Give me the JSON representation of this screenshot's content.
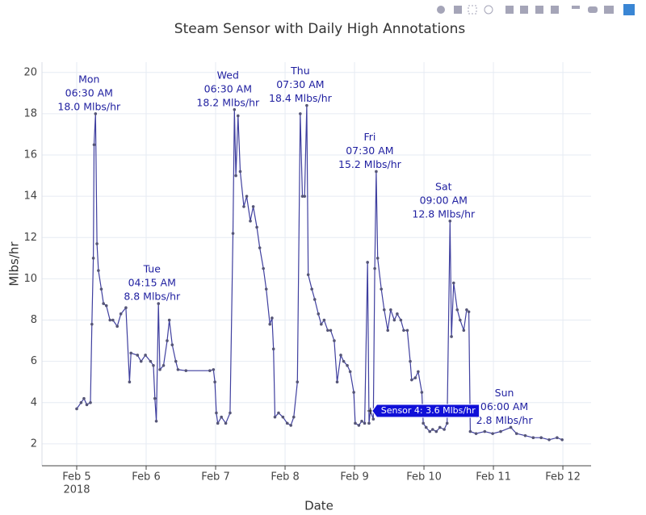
{
  "chart_data": {
    "type": "line",
    "title": "Steam Sensor with Daily High Annotations",
    "x_label": "Date",
    "y_label": "Mlbs/hr",
    "color": "#3f3f9f",
    "marker_color": "#555577",
    "grid": true,
    "xlim": [
      "2018-02-04 12:00",
      "2018-02-12 09:45"
    ],
    "ylim": [
      0.94,
      20.5
    ],
    "yticks": [
      2,
      4,
      6,
      8,
      10,
      12,
      14,
      16,
      18,
      20
    ],
    "xticks": [
      {
        "value": "2018-02-05 00:00",
        "label": [
          "Feb 5",
          "2018"
        ]
      },
      {
        "value": "2018-02-06 00:00",
        "label": [
          "Feb 6"
        ]
      },
      {
        "value": "2018-02-07 00:00",
        "label": [
          "Feb 7"
        ]
      },
      {
        "value": "2018-02-08 00:00",
        "label": [
          "Feb 8"
        ]
      },
      {
        "value": "2018-02-09 00:00",
        "label": [
          "Feb 9"
        ]
      },
      {
        "value": "2018-02-10 00:00",
        "label": [
          "Feb 10"
        ]
      },
      {
        "value": "2018-02-11 00:00",
        "label": [
          "Feb 11"
        ]
      },
      {
        "value": "2018-02-12 00:00",
        "label": [
          "Feb 12"
        ]
      }
    ],
    "x": [
      "2018-02-05 00:00",
      "2018-02-05 01:30",
      "2018-02-05 02:30",
      "2018-02-05 03:30",
      "2018-02-05 04:45",
      "2018-02-05 05:15",
      "2018-02-05 05:45",
      "2018-02-05 06:00",
      "2018-02-05 06:30",
      "2018-02-05 07:00",
      "2018-02-05 07:30",
      "2018-02-05 08:30",
      "2018-02-05 09:15",
      "2018-02-05 10:15",
      "2018-02-05 11:30",
      "2018-02-05 12:30",
      "2018-02-05 14:00",
      "2018-02-05 15:15",
      "2018-02-05 17:00",
      "2018-02-05 18:15",
      "2018-02-05 18:45",
      "2018-02-05 21:00",
      "2018-02-05 22:15",
      "2018-02-05 23:45",
      "2018-02-06 01:30",
      "2018-02-06 02:30",
      "2018-02-06 03:00",
      "2018-02-06 03:30",
      "2018-02-06 04:15",
      "2018-02-06 04:45",
      "2018-02-06 06:00",
      "2018-02-06 07:15",
      "2018-02-06 08:00",
      "2018-02-06 09:00",
      "2018-02-06 10:15",
      "2018-02-06 11:00",
      "2018-02-06 13:45",
      "2018-02-06 22:00",
      "2018-02-06 23:15",
      "2018-02-06 23:45",
      "2018-02-07 00:15",
      "2018-02-07 00:45",
      "2018-02-07 02:00",
      "2018-02-07 03:30",
      "2018-02-07 05:00",
      "2018-02-07 06:00",
      "2018-02-07 06:30",
      "2018-02-07 07:00",
      "2018-02-07 07:45",
      "2018-02-07 08:30",
      "2018-02-07 09:45",
      "2018-02-07 10:45",
      "2018-02-07 12:00",
      "2018-02-07 13:00",
      "2018-02-07 14:15",
      "2018-02-07 15:15",
      "2018-02-07 16:30",
      "2018-02-07 17:30",
      "2018-02-07 18:45",
      "2018-02-07 19:30",
      "2018-02-07 20:00",
      "2018-02-07 20:30",
      "2018-02-07 21:45",
      "2018-02-07 23:15",
      "2018-02-08 00:45",
      "2018-02-08 02:00",
      "2018-02-08 03:00",
      "2018-02-08 04:15",
      "2018-02-08 05:15",
      "2018-02-08 06:00",
      "2018-02-08 06:45",
      "2018-02-08 07:30",
      "2018-02-08 08:00",
      "2018-02-08 09:15",
      "2018-02-08 10:15",
      "2018-02-08 11:30",
      "2018-02-08 12:30",
      "2018-02-08 13:30",
      "2018-02-08 14:45",
      "2018-02-08 15:45",
      "2018-02-08 17:00",
      "2018-02-08 18:00",
      "2018-02-08 19:15",
      "2018-02-08 20:15",
      "2018-02-08 21:30",
      "2018-02-08 22:30",
      "2018-02-08 23:45",
      "2018-02-09 00:15",
      "2018-02-09 01:30",
      "2018-02-09 02:30",
      "2018-02-09 03:30",
      "2018-02-09 04:30",
      "2018-02-09 05:00",
      "2018-02-09 05:30",
      "2018-02-09 06:30",
      "2018-02-09 07:00",
      "2018-02-09 07:30",
      "2018-02-09 08:00",
      "2018-02-09 09:15",
      "2018-02-09 10:15",
      "2018-02-09 11:30",
      "2018-02-09 12:30",
      "2018-02-09 13:45",
      "2018-02-09 14:45",
      "2018-02-09 16:00",
      "2018-02-09 17:00",
      "2018-02-09 18:15",
      "2018-02-09 19:15",
      "2018-02-09 19:45",
      "2018-02-09 21:00",
      "2018-02-09 22:00",
      "2018-02-09 23:15",
      "2018-02-09 23:45",
      "2018-02-10 00:45",
      "2018-02-10 02:00",
      "2018-02-10 03:00",
      "2018-02-10 04:15",
      "2018-02-10 05:30",
      "2018-02-10 07:00",
      "2018-02-10 08:00",
      "2018-02-10 09:00",
      "2018-02-10 09:30",
      "2018-02-10 10:15",
      "2018-02-10 11:30",
      "2018-02-10 12:30",
      "2018-02-10 13:45",
      "2018-02-10 14:45",
      "2018-02-10 15:30",
      "2018-02-10 16:00",
      "2018-02-10 18:00",
      "2018-02-10 21:00",
      "2018-02-10 23:45",
      "2018-02-11 02:30",
      "2018-02-11 06:00",
      "2018-02-11 08:00",
      "2018-02-11 11:00",
      "2018-02-11 13:45",
      "2018-02-11 16:30",
      "2018-02-11 19:15",
      "2018-02-11 22:00",
      "2018-02-11 23:45"
    ],
    "values": [
      3.7,
      4.0,
      4.2,
      3.9,
      4.0,
      7.8,
      11.0,
      16.5,
      18.0,
      11.7,
      10.4,
      9.5,
      8.8,
      8.7,
      8.0,
      8.0,
      7.7,
      8.3,
      8.6,
      5.0,
      6.4,
      6.3,
      6.0,
      6.3,
      6.0,
      5.8,
      4.2,
      3.1,
      8.8,
      5.6,
      5.8,
      7.0,
      8.0,
      6.8,
      6.0,
      5.6,
      5.55,
      5.55,
      5.6,
      5.0,
      3.5,
      3.0,
      3.3,
      3.0,
      3.5,
      12.2,
      18.2,
      15.0,
      17.9,
      15.2,
      13.5,
      14.0,
      12.8,
      13.5,
      12.5,
      11.5,
      10.5,
      9.5,
      7.8,
      8.1,
      6.6,
      3.3,
      3.5,
      3.3,
      3.0,
      2.9,
      3.3,
      5.0,
      18.0,
      14.0,
      14.0,
      18.4,
      10.2,
      9.5,
      9.0,
      8.3,
      7.8,
      8.0,
      7.5,
      7.5,
      7.0,
      5.0,
      6.3,
      6.0,
      5.8,
      5.5,
      4.5,
      3.0,
      2.9,
      3.1,
      3.0,
      10.8,
      3.0,
      3.6,
      3.2,
      10.5,
      15.2,
      11.0,
      9.5,
      8.5,
      7.5,
      8.5,
      8.0,
      8.3,
      8.0,
      7.5,
      7.5,
      6.0,
      5.1,
      5.2,
      5.5,
      4.5,
      3.0,
      2.8,
      2.6,
      2.7,
      2.6,
      2.8,
      2.7,
      3.0,
      12.8,
      7.2,
      9.8,
      8.5,
      8.0,
      7.5,
      8.5,
      8.4,
      2.6,
      2.5,
      2.6,
      2.5,
      2.6,
      2.8,
      2.5,
      2.4,
      2.3,
      2.3,
      2.2,
      2.3,
      2.2
    ],
    "annotations": [
      {
        "x": "2018-02-05 06:30",
        "y": 18.0,
        "text": [
          "Mon",
          "06:30 AM",
          "18.0 Mlbs/hr"
        ]
      },
      {
        "x": "2018-02-06 04:15",
        "y": 8.8,
        "text": [
          "Tue",
          "04:15 AM",
          "8.8 Mlbs/hr"
        ]
      },
      {
        "x": "2018-02-07 06:30",
        "y": 18.2,
        "text": [
          "Wed",
          "06:30 AM",
          "18.2 Mlbs/hr"
        ]
      },
      {
        "x": "2018-02-08 07:30",
        "y": 18.4,
        "text": [
          "Thu",
          "07:30 AM",
          "18.4 Mlbs/hr"
        ]
      },
      {
        "x": "2018-02-09 07:30",
        "y": 15.2,
        "text": [
          "Fri",
          "07:30 AM",
          "15.2 Mlbs/hr"
        ]
      },
      {
        "x": "2018-02-10 09:00",
        "y": 12.8,
        "text": [
          "Sat",
          "09:00 AM",
          "12.8 Mlbs/hr"
        ]
      },
      {
        "x": "2018-02-11 06:00",
        "y": 2.8,
        "text": [
          "Sun",
          "06:00 AM",
          "2.8 Mlbs/hr"
        ]
      }
    ],
    "hover": {
      "x": "2018-02-09 05:30",
      "y": 3.6,
      "text": "Sensor 4: 3.6 Mlbs/hr"
    }
  }
}
